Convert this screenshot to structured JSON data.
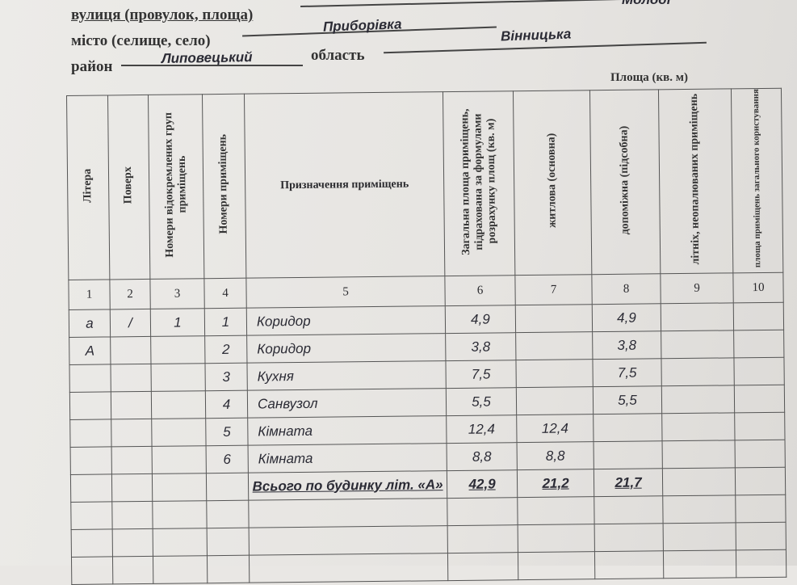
{
  "address": {
    "street_label": "вулиця (провулок, площа)",
    "street_value": "Молоді",
    "city_label": "місто (селище, село)",
    "city_value": "Приборівка",
    "district_label": "район",
    "district_value": "Липовецький",
    "region_label": "область",
    "region_value": "Вінницька"
  },
  "table": {
    "area_group_header": "Площа (кв. м)",
    "headers": [
      "Літера",
      "Поверх",
      "Номери відокремлених груп приміщень",
      "Номери приміщень",
      "Призначення приміщень",
      "Загальна площа приміщень, підрахована за формулами розрахунку площ (кв. м)",
      "житлова (основна)",
      "допоміжна (підсобна)",
      "літніх, неопалюваних приміщень",
      "площа приміщень загального користування"
    ],
    "column_numbers": [
      "1",
      "2",
      "3",
      "4",
      "5",
      "6",
      "7",
      "8",
      "9",
      "10"
    ],
    "rows": [
      [
        "а",
        "/",
        "1",
        "1",
        "Коридор",
        "4,9",
        "",
        "4,9",
        "",
        ""
      ],
      [
        "А",
        "",
        "",
        "2",
        "Коридор",
        "3,8",
        "",
        "3,8",
        "",
        ""
      ],
      [
        "",
        "",
        "",
        "3",
        "Кухня",
        "7,5",
        "",
        "7,5",
        "",
        ""
      ],
      [
        "",
        "",
        "",
        "4",
        "Санвузол",
        "5,5",
        "",
        "5,5",
        "",
        ""
      ],
      [
        "",
        "",
        "",
        "5",
        "Кімната",
        "12,4",
        "12,4",
        "",
        "",
        ""
      ],
      [
        "",
        "",
        "",
        "6",
        "Кімната",
        "8,8",
        "8,8",
        "",
        "",
        ""
      ]
    ],
    "total": {
      "label": "Всього по будинку літ. «А»",
      "total_area": "42,9",
      "living": "21,2",
      "auxiliary": "21,7"
    }
  }
}
